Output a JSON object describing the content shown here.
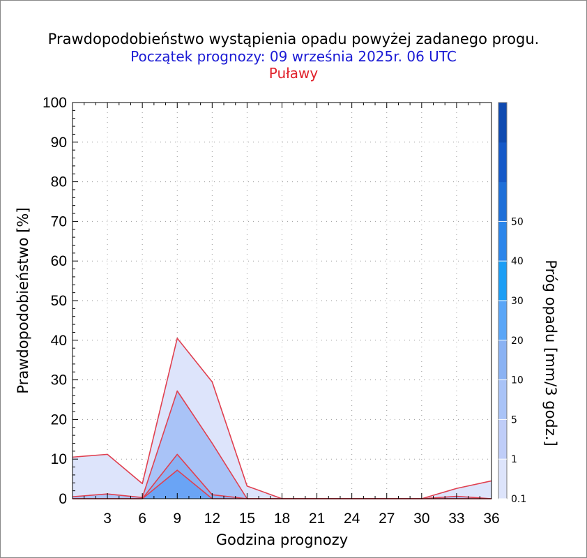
{
  "header": {
    "title": "Prawdopodobieństwo wystąpienia opadu powyżej zadanego progu.",
    "subtitle": "Początek prognozy: 09 września 2025r. 06 UTC",
    "location": "Puławy"
  },
  "chart_data": {
    "type": "area",
    "xlabel": "Godzina prognozy",
    "ylabel": "Prawdopodobieństwo [%]",
    "colorbar_label": "Próg opadu [mm/3 godz.]",
    "x": [
      0,
      3,
      6,
      9,
      12,
      15,
      18,
      21,
      24,
      27,
      30,
      33,
      36
    ],
    "xticks": [
      "3",
      "6",
      "9",
      "12",
      "15",
      "18",
      "21",
      "24",
      "27",
      "30",
      "33",
      "36"
    ],
    "xlim": [
      0,
      36
    ],
    "ylim": [
      0,
      100
    ],
    "yticks": [
      "0",
      "10",
      "20",
      "30",
      "40",
      "50",
      "60",
      "70",
      "80",
      "90",
      "100"
    ],
    "grid": true,
    "series": [
      {
        "name": "0.1",
        "color": "#dde4fb",
        "values": [
          10.5,
          11.2,
          3.8,
          40.5,
          29.5,
          3.2,
          0,
          0,
          0,
          0,
          0,
          2.6,
          4.5
        ]
      },
      {
        "name": "1",
        "color": "#a9c3f7",
        "values": [
          0.5,
          1.2,
          0.3,
          27.2,
          14.0,
          0,
          0,
          0,
          0,
          0,
          0,
          0.6,
          0
        ]
      },
      {
        "name": "5",
        "color": "#8ab2f3",
        "values": [
          0,
          0,
          0,
          11.2,
          1.0,
          0,
          0,
          0,
          0,
          0,
          0,
          0,
          0
        ]
      },
      {
        "name": "10",
        "color": "#6aa4f5",
        "values": [
          0,
          0,
          0,
          7.2,
          0,
          0,
          0,
          0,
          0,
          0,
          0,
          0,
          0
        ]
      }
    ],
    "line_color": "#e04050",
    "colorbar": {
      "labels": [
        "0.1",
        "1",
        "5",
        "10",
        "20",
        "30",
        "40",
        "50"
      ],
      "colors": [
        "#dde4fb",
        "#bfcdf8",
        "#a9c3f7",
        "#8ab2f3",
        "#5aa6f7",
        "#1b9ef5",
        "#2b85ea",
        "#1e6fd8",
        "#1559c8",
        "#0f4ab0"
      ]
    }
  }
}
